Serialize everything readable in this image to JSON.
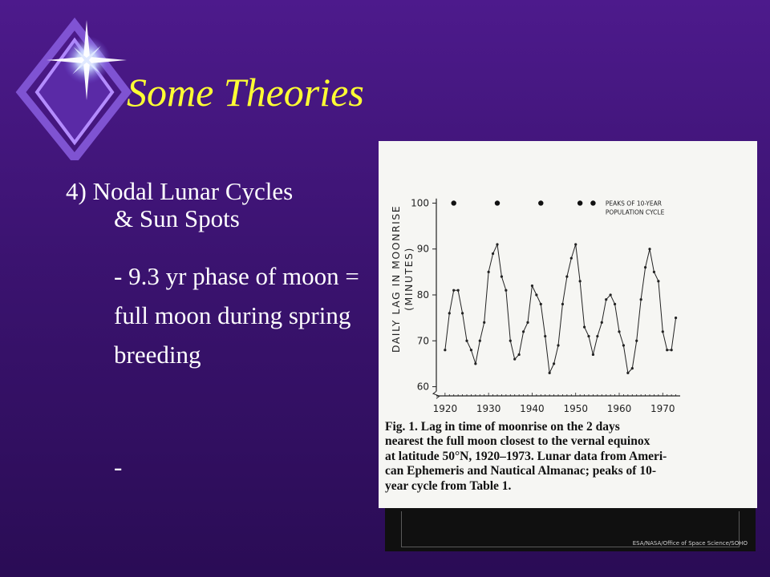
{
  "slide": {
    "title": "Some Theories",
    "bullets": {
      "line1": "4) Nodal Lunar Cycles",
      "line2": "& Sun Spots",
      "sub": "- 9.3 yr phase of moon = full moon during spring breeding",
      "dash": "-"
    },
    "colors": {
      "title": "#ffff33",
      "background": "#3b1370",
      "text": "#ffffff"
    },
    "photo_credit": "ESA/NASA/Office of Space Science/SOHO"
  },
  "figure": {
    "caption": "Fig. 1.  Lag in time of moonrise on the 2 days\nnearest the full moon closest to the vernal equinox\nat latitude 50°N, 1920–1973. Lunar data from Ameri-\ncan Ephemeris and Nautical Almanac; peaks of 10-\nyear cycle from Table 1."
  },
  "chart_data": {
    "type": "line",
    "ylabel_line1": "DAILY LAG IN MOONRISE",
    "ylabel_line2": "(MINUTES)",
    "xlabel": "",
    "xlim": [
      1918,
      1974
    ],
    "ylim": [
      58,
      102
    ],
    "xticks": [
      1920,
      1930,
      1940,
      1950,
      1960,
      1970
    ],
    "yticks": [
      60,
      70,
      80,
      90,
      100
    ],
    "grid": false,
    "legend": "top-right",
    "legend_text_line1": "PEAKS OF 10-YEAR",
    "legend_text_line2": "POPULATION CYCLE",
    "peaks_x": [
      1922,
      1932,
      1942,
      1951,
      1954
    ],
    "peaks_y": 100,
    "series": [
      {
        "x": [
          1920,
          1921,
          1922,
          1923,
          1924,
          1925,
          1926,
          1927,
          1928,
          1929,
          1930,
          1931,
          1932,
          1933,
          1934,
          1935,
          1936,
          1937,
          1938,
          1939,
          1940,
          1941,
          1942,
          1943,
          1944,
          1945,
          1946,
          1947,
          1948,
          1949,
          1950,
          1951,
          1952,
          1953,
          1954,
          1955,
          1956,
          1957,
          1958,
          1959,
          1960,
          1961,
          1962,
          1963,
          1964,
          1965,
          1966,
          1967,
          1968,
          1969,
          1970,
          1971,
          1972,
          1973
        ],
        "values": [
          68,
          76,
          81,
          81,
          76,
          70,
          68,
          65,
          70,
          74,
          85,
          89,
          91,
          84,
          81,
          70,
          66,
          67,
          72,
          74,
          82,
          80,
          78,
          71,
          63,
          65,
          69,
          78,
          84,
          88,
          91,
          83,
          73,
          71,
          67,
          71,
          74,
          79,
          80,
          78,
          72,
          69,
          63,
          64,
          70,
          79,
          86,
          90,
          85,
          83,
          72,
          68,
          68,
          75
        ]
      }
    ]
  }
}
